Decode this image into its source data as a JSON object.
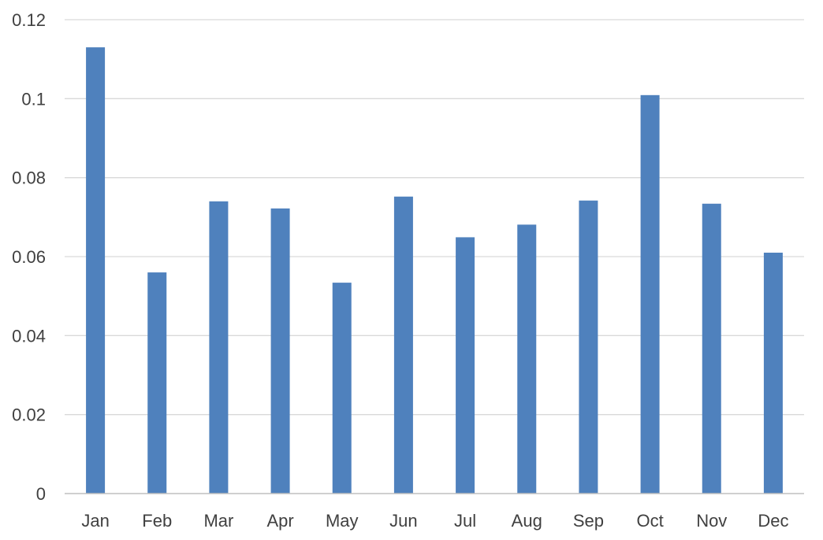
{
  "chart_data": {
    "type": "bar",
    "title": "",
    "xlabel": "",
    "ylabel": "",
    "categories": [
      "Jan",
      "Feb",
      "Mar",
      "Apr",
      "May",
      "Jun",
      "Jul",
      "Aug",
      "Sep",
      "Oct",
      "Nov",
      "Dec"
    ],
    "values": [
      0.113,
      0.056,
      0.074,
      0.0722,
      0.0534,
      0.0752,
      0.0649,
      0.0681,
      0.0742,
      0.1009,
      0.0734,
      0.061
    ],
    "ylim": [
      0,
      0.12
    ],
    "yticks": [
      "0",
      "0.02",
      "0.04",
      "0.06",
      "0.08",
      "0.1",
      "0.12"
    ],
    "grid": true,
    "legend": "none",
    "colors": {
      "bar": "#4f81bd",
      "grid": "#d9d9d9",
      "axis": "#bfbfbf",
      "text": "#404040"
    }
  }
}
